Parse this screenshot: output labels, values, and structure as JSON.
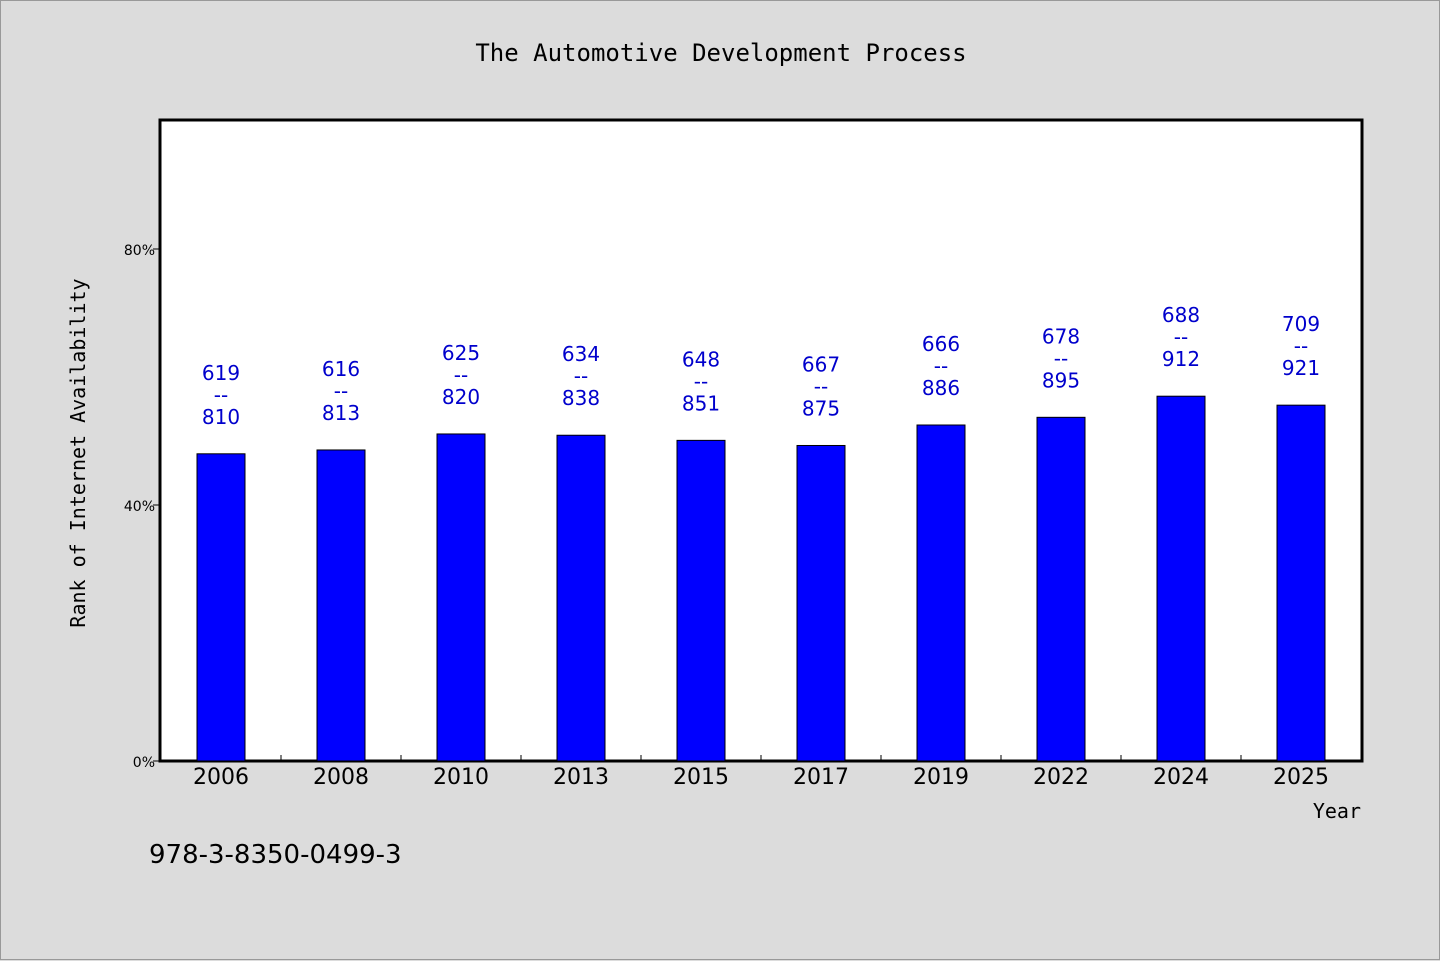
{
  "chart_data": {
    "type": "bar",
    "title": "The Automotive Development Process",
    "xlabel": "Year",
    "ylabel": "Rank of Internet Availability",
    "categories": [
      "2006",
      "2008",
      "2010",
      "2013",
      "2015",
      "2017",
      "2019",
      "2022",
      "2024",
      "2025"
    ],
    "values": [
      48.0,
      48.6,
      51.1,
      50.9,
      50.1,
      49.3,
      52.5,
      53.7,
      57.0,
      55.6
    ],
    "bar_labels": [
      [
        "619",
        "--",
        "810"
      ],
      [
        "616",
        "--",
        "813"
      ],
      [
        "625",
        "--",
        "820"
      ],
      [
        "634",
        "--",
        "838"
      ],
      [
        "648",
        "--",
        "851"
      ],
      [
        "667",
        "--",
        "875"
      ],
      [
        "666",
        "--",
        "886"
      ],
      [
        "678",
        "--",
        "895"
      ],
      [
        "688",
        "--",
        "912"
      ],
      [
        "709",
        "--",
        "921"
      ]
    ],
    "yticks": [
      0,
      40,
      80
    ],
    "ytick_labels": [
      "0%",
      "40%",
      "80%"
    ],
    "ylim": [
      0,
      100
    ],
    "bar_color": "#0000ff",
    "label_color": "#0000cc",
    "grid": false
  },
  "footer": {
    "isbn": "978-3-8350-0499-3"
  }
}
